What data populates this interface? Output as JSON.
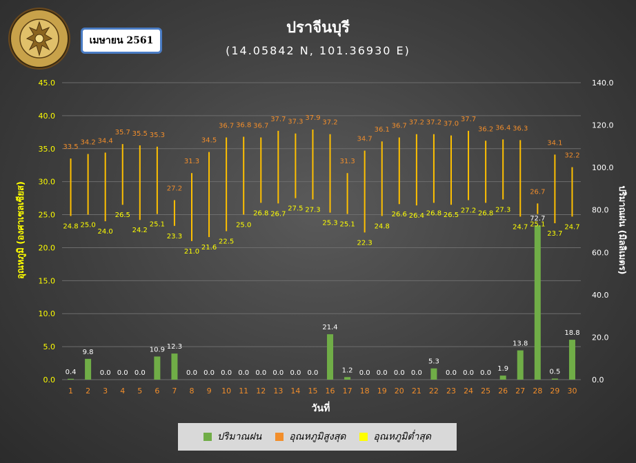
{
  "header": {
    "title": "ปราจีนบุรี",
    "subtitle": "(14.05842 N, 101.36930 E)",
    "month_label": "เมษายน 2561",
    "logo_text_top": "กรมอุตุนิยมวิทยา",
    "logo_text_bottom": "METEOROLOGICAL DEPARTMENT"
  },
  "legend": {
    "items": [
      {
        "label": "ปริมาณฝน",
        "color": "#70ad47"
      },
      {
        "label": "อุณหภูมิสูงสุด",
        "color": "#f28e2b"
      },
      {
        "label": "อุณหภูมิต่ำสุด",
        "color": "#ffff00"
      }
    ]
  },
  "chart_data": {
    "type": "bar",
    "xlabel": "วันที่",
    "ylabel": "อุณหภูมิ (องศาเซลเซียส)",
    "y2label": "ปริมาณฝน (มิลลิเมตร)",
    "ylim": [
      0,
      45
    ],
    "y2lim": [
      0,
      140
    ],
    "yticks": [
      "0.0",
      "5.0",
      "10.0",
      "15.0",
      "20.0",
      "25.0",
      "30.0",
      "35.0",
      "40.0",
      "45.0"
    ],
    "y2ticks": [
      "0.0",
      "20.0",
      "40.0",
      "60.0",
      "80.0",
      "100.0",
      "120.0",
      "140.0"
    ],
    "categories": [
      "1",
      "2",
      "3",
      "4",
      "5",
      "6",
      "7",
      "8",
      "9",
      "10",
      "11",
      "12",
      "13",
      "14",
      "15",
      "16",
      "17",
      "18",
      "19",
      "20",
      "21",
      "22",
      "23",
      "24",
      "25",
      "26",
      "27",
      "28",
      "29",
      "30"
    ],
    "series": [
      {
        "name": "ปริมาณฝน",
        "axis": "y2",
        "color": "#70ad47",
        "values": [
          0.4,
          9.8,
          0.0,
          0.0,
          0.0,
          10.9,
          12.3,
          0.0,
          0.0,
          0.0,
          0.0,
          0.0,
          0.0,
          0.0,
          0.0,
          21.4,
          1.2,
          0.0,
          0.0,
          0.0,
          0.0,
          5.3,
          0.0,
          0.0,
          0.0,
          1.9,
          13.8,
          72.7,
          0.5,
          18.8
        ],
        "labels": [
          "0.4",
          "9.8",
          "0.0",
          "0.0",
          "0.0",
          "10.9",
          "12.3",
          "0.0",
          "0.0",
          "0.0",
          "0.0",
          "0.0",
          "0.0",
          "0.0",
          "0.0",
          "21.4",
          "1.2",
          "0.0",
          "0.0",
          "0.0",
          "0.0",
          "5.3",
          "0.0",
          "0.0",
          "0.0",
          "1.9",
          "13.8",
          "72.7",
          "0.5",
          "18.8"
        ]
      },
      {
        "name": "อุณหภูมิสูงสุด",
        "axis": "y",
        "color": "#f28e2b",
        "values": [
          33.5,
          34.2,
          34.4,
          35.7,
          35.5,
          35.3,
          27.2,
          31.3,
          34.5,
          36.7,
          36.8,
          36.7,
          37.7,
          37.3,
          37.9,
          37.2,
          31.3,
          34.7,
          36.1,
          36.7,
          37.2,
          37.2,
          37.0,
          37.7,
          36.2,
          36.4,
          36.3,
          26.7,
          34.1,
          32.2
        ],
        "labels": [
          "33.5",
          "34.2",
          "34.4",
          "35.7",
          "35.5",
          "35.3",
          "27.2",
          "31.3",
          "34.5",
          "36.7",
          "36.8",
          "36.7",
          "37.7",
          "37.3",
          "37.9",
          "37.2",
          "31.3",
          "34.7",
          "36.1",
          "36.7",
          "37.2",
          "37.2",
          "37.0",
          "37.7",
          "36.2",
          "36.4",
          "36.3",
          "26.7",
          "34.1",
          "32.2"
        ]
      },
      {
        "name": "อุณหภูมิต่ำสุด",
        "axis": "y",
        "color": "#ffff00",
        "values": [
          24.8,
          25.0,
          24.0,
          26.5,
          24.2,
          25.1,
          23.3,
          21.0,
          21.6,
          22.5,
          25.0,
          26.8,
          26.7,
          27.5,
          27.3,
          25.3,
          25.1,
          22.3,
          24.8,
          26.6,
          26.4,
          26.8,
          26.5,
          27.2,
          26.8,
          27.3,
          24.7,
          25.1,
          23.7,
          24.7
        ],
        "labels": [
          "24.8",
          "25.0",
          "24.0",
          "26.5",
          "24.2",
          "25.1",
          "23.3",
          "21.0",
          "21.6",
          "22.5",
          "25.0",
          "26.8",
          "26.7",
          "27.5",
          "27.3",
          "25.3",
          "25.1",
          "22.3",
          "24.8",
          "26.6",
          "26.4",
          "26.8",
          "26.5",
          "27.2",
          "26.8",
          "27.3",
          "24.7",
          "25.1",
          "23.7",
          "24.7"
        ]
      }
    ],
    "colors": {
      "axis_tick_left": "#ffff00",
      "axis_tick_right": "#ffffff",
      "category_tick": "#f28e2b",
      "range_line": "#ffc000",
      "grid": "#6e6e6e"
    }
  }
}
